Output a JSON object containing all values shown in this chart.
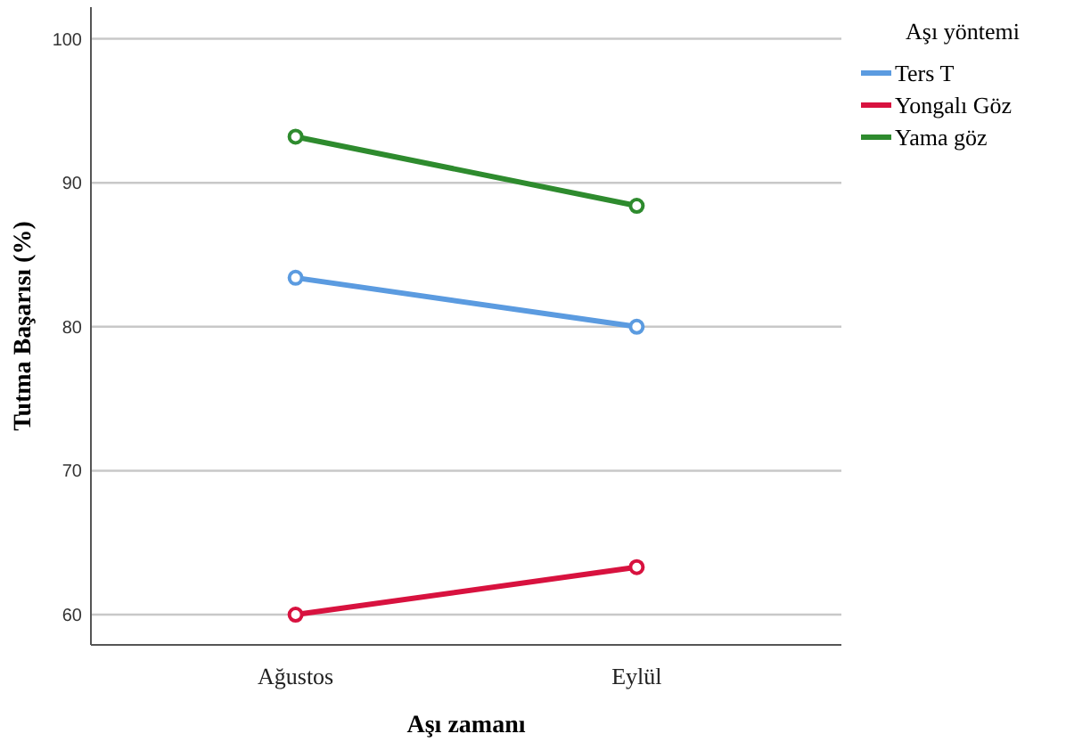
{
  "chart_data": {
    "type": "line",
    "xlabel": "Aşı zamanı",
    "ylabel": "Tutma Başarısı (%)",
    "legend_title": "Aşı yöntemi",
    "categories": [
      "Ağustos",
      "Eylül"
    ],
    "series": [
      {
        "name": "Ters T",
        "color": "#5b9be0",
        "values": [
          83.4,
          80.0
        ]
      },
      {
        "name": "Yongalı Göz",
        "color": "#d8123f",
        "values": [
          60.0,
          63.3
        ]
      },
      {
        "name": "Yama göz",
        "color": "#2e8b2e",
        "values": [
          93.2,
          88.4
        ]
      }
    ],
    "ylim": [
      57.9,
      102.2
    ],
    "yticks": [
      60,
      70,
      80,
      90,
      100
    ],
    "grid": "y",
    "legend": "top right",
    "marker": "circle",
    "line_style": "solid"
  }
}
